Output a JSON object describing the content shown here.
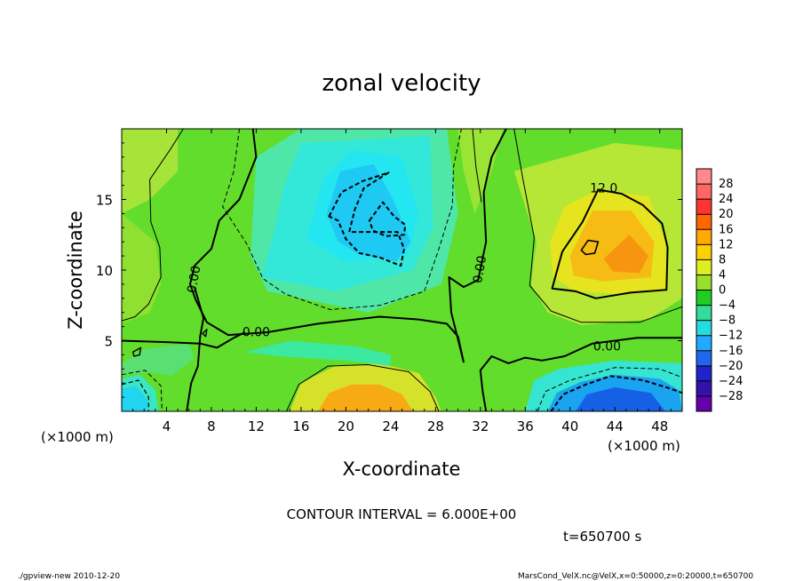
{
  "chart_data": {
    "type": "heatmap",
    "title": "zonal velocity",
    "xlabel": "X-coordinate",
    "ylabel": "Z-coordinate",
    "x_unit": "(×1000 m)",
    "y_unit": "(×1000 m)",
    "xlim": [
      0,
      50
    ],
    "ylim": [
      0,
      20
    ],
    "x_ticks": [
      4,
      8,
      12,
      16,
      20,
      24,
      28,
      32,
      36,
      40,
      44,
      48
    ],
    "y_ticks": [
      5,
      10,
      15
    ],
    "contour_interval_text": "CONTOUR INTERVAL = 6.000E+00",
    "time_text": "t=650700 s",
    "colorbar": {
      "labels": [
        "28",
        "24",
        "20",
        "16",
        "12",
        "8",
        "4",
        "0",
        "−4",
        "−8",
        "−12",
        "−16",
        "−20",
        "−24",
        "−28"
      ],
      "levels": [
        28,
        24,
        20,
        16,
        12,
        8,
        4,
        0,
        -4,
        -8,
        -12,
        -16,
        -20,
        -24,
        -28
      ]
    },
    "contour_labels": [
      {
        "text": "12.0",
        "x": 43,
        "y": 15.5
      },
      {
        "text": "0.00",
        "x": 6.8,
        "y": 9.3
      },
      {
        "text": "0.00",
        "x": 12.0,
        "y": 5.3
      },
      {
        "text": "0.00",
        "x": 32.3,
        "y": 10.0
      },
      {
        "text": "0.00",
        "x": 43.3,
        "y": 4.3
      }
    ],
    "field_features": [
      {
        "description": "negative core",
        "x": 22.5,
        "y": 12.5,
        "value": -14
      },
      {
        "description": "positive core",
        "x": 45,
        "y": 10.5,
        "value": 18
      },
      {
        "description": "positive core",
        "x": 22.5,
        "y": 1,
        "value": 17
      },
      {
        "description": "negative core",
        "x": 44,
        "y": 1,
        "value": -20
      },
      {
        "description": "negative core",
        "x": 1,
        "y": 1,
        "value": -10
      }
    ]
  },
  "footer": {
    "left": "./gpview-new   2010-12-20",
    "right": "MarsCond_VelX.nc@VelX,x=0:50000,z=0:20000,t=650700"
  }
}
